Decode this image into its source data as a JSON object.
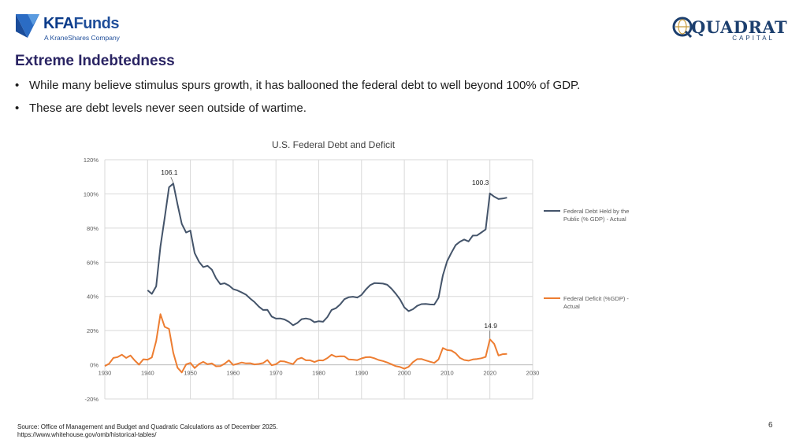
{
  "header": {
    "left_logo": {
      "brand_prefix": "KFA",
      "brand_suffix": "Funds",
      "tagline": "A KraneShares Company"
    },
    "right_logo": {
      "name": "QUADRATIC",
      "sub": "CAPITAL"
    }
  },
  "slide": {
    "title": "Extreme Indebtedness",
    "bullets": [
      "While many believe stimulus spurs growth, it has ballooned the federal debt to well beyond 100% of GDP.",
      "These are debt levels never seen outside of wartime."
    ],
    "source_line1": "Source: Office of Management and Budget and Quadratic Calculations as of December 2025.",
    "source_line2": "https://www.whitehouse.gov/omb/historical-tables/",
    "page_number": "6"
  },
  "colors": {
    "title": "#2a2463",
    "debt": "#44546a",
    "deficit": "#ed7d31",
    "grid": "#d9d9d9",
    "axis_text": "#595959"
  },
  "chart_data": {
    "type": "line",
    "title": "U.S. Federal Debt and Deficit",
    "xlabel": "",
    "ylabel": "",
    "xlim": [
      1930,
      2030
    ],
    "ylim": [
      -20,
      120
    ],
    "x_ticks": [
      "1930",
      "1940",
      "1950",
      "1960",
      "1970",
      "1980",
      "1990",
      "2000",
      "2010",
      "2020",
      "2030"
    ],
    "y_ticks": [
      "120%",
      "100%",
      "80%",
      "60%",
      "40%",
      "20%",
      "0%",
      "-20%"
    ],
    "grid": true,
    "legend_position": "right",
    "series": [
      {
        "name": "Federal Debt Held by the Public (% GDP) - Actual",
        "color": "#44546a",
        "x": [
          1940,
          1941,
          1942,
          1943,
          1944,
          1945,
          1946,
          1947,
          1948,
          1949,
          1950,
          1951,
          1952,
          1953,
          1954,
          1955,
          1956,
          1957,
          1958,
          1959,
          1960,
          1961,
          1962,
          1963,
          1964,
          1965,
          1966,
          1967,
          1968,
          1969,
          1970,
          1971,
          1972,
          1973,
          1974,
          1975,
          1976,
          1977,
          1978,
          1979,
          1980,
          1981,
          1982,
          1983,
          1984,
          1985,
          1986,
          1987,
          1988,
          1989,
          1990,
          1991,
          1992,
          1993,
          1994,
          1995,
          1996,
          1997,
          1998,
          1999,
          2000,
          2001,
          2002,
          2003,
          2004,
          2005,
          2006,
          2007,
          2008,
          2009,
          2010,
          2011,
          2012,
          2013,
          2014,
          2015,
          2016,
          2017,
          2018,
          2019,
          2020,
          2021,
          2022,
          2023,
          2024
        ],
        "y": [
          43.6,
          41.5,
          45.9,
          69.2,
          86.0,
          103.9,
          106.1,
          93.9,
          82.4,
          77.4,
          78.5,
          65.4,
          60.3,
          57.2,
          57.9,
          55.7,
          50.6,
          47.2,
          47.7,
          46.4,
          44.3,
          43.5,
          42.3,
          41.0,
          38.7,
          36.7,
          34.0,
          32.1,
          32.2,
          28.2,
          27.0,
          27.1,
          26.5,
          25.2,
          23.1,
          24.5,
          26.7,
          27.1,
          26.6,
          24.9,
          25.5,
          25.2,
          27.9,
          32.1,
          33.1,
          35.3,
          38.4,
          39.5,
          39.8,
          39.3,
          40.9,
          44.0,
          46.6,
          47.8,
          47.7,
          47.5,
          46.8,
          44.5,
          41.6,
          38.2,
          33.6,
          31.4,
          32.5,
          34.5,
          35.5,
          35.6,
          35.3,
          35.2,
          39.2,
          52.3,
          60.6,
          65.5,
          70.1,
          72.0,
          73.3,
          72.2,
          75.6,
          75.7,
          77.4,
          79.2,
          100.3,
          98.4,
          97.0,
          97.3,
          97.8
        ]
      },
      {
        "name": "Federal Deficit (%GDP) - Actual",
        "color": "#ed7d31",
        "x": [
          1930,
          1931,
          1932,
          1933,
          1934,
          1935,
          1936,
          1937,
          1938,
          1939,
          1940,
          1941,
          1942,
          1943,
          1944,
          1945,
          1946,
          1947,
          1948,
          1949,
          1950,
          1951,
          1952,
          1953,
          1954,
          1955,
          1956,
          1957,
          1958,
          1959,
          1960,
          1961,
          1962,
          1963,
          1964,
          1965,
          1966,
          1967,
          1968,
          1969,
          1970,
          1971,
          1972,
          1973,
          1974,
          1975,
          1976,
          1977,
          1978,
          1979,
          1980,
          1981,
          1982,
          1983,
          1984,
          1985,
          1986,
          1987,
          1988,
          1989,
          1990,
          1991,
          1992,
          1993,
          1994,
          1995,
          1996,
          1997,
          1998,
          1999,
          2000,
          2001,
          2002,
          2003,
          2004,
          2005,
          2006,
          2007,
          2008,
          2009,
          2010,
          2011,
          2012,
          2013,
          2014,
          2015,
          2016,
          2017,
          2018,
          2019,
          2020,
          2021,
          2022,
          2023,
          2024
        ],
        "y": [
          -0.8,
          0.6,
          4.0,
          4.5,
          5.9,
          4.0,
          5.4,
          2.5,
          0.1,
          3.2,
          3.0,
          4.3,
          13.9,
          29.6,
          22.2,
          21.0,
          7.0,
          -1.7,
          -4.5,
          0.2,
          1.1,
          -1.9,
          0.4,
          1.7,
          0.3,
          0.8,
          -0.9,
          -0.8,
          0.6,
          2.6,
          -0.1,
          0.6,
          1.3,
          0.8,
          0.9,
          0.2,
          0.5,
          1.0,
          2.8,
          -0.3,
          0.3,
          2.1,
          1.9,
          1.1,
          0.4,
          3.3,
          4.1,
          2.6,
          2.6,
          1.6,
          2.6,
          2.5,
          3.9,
          5.9,
          4.7,
          5.0,
          4.9,
          3.1,
          3.0,
          2.7,
          3.7,
          4.4,
          4.5,
          3.8,
          2.8,
          2.2,
          1.3,
          0.3,
          -0.8,
          -1.3,
          -2.3,
          -1.2,
          1.5,
          3.3,
          3.4,
          2.5,
          1.8,
          1.1,
          3.1,
          9.8,
          8.6,
          8.3,
          6.7,
          4.0,
          2.8,
          2.4,
          3.1,
          3.4,
          3.8,
          4.6,
          14.9,
          12.3,
          5.4,
          6.2,
          6.4
        ]
      }
    ],
    "annotations": [
      {
        "label": "106.1",
        "x": 1946,
        "y": 106.1,
        "series": "debt"
      },
      {
        "label": "100.3",
        "x": 2020,
        "y": 100.3,
        "series": "debt"
      },
      {
        "label": "14.9",
        "x": 2020,
        "y": 14.9,
        "series": "deficit"
      }
    ]
  }
}
